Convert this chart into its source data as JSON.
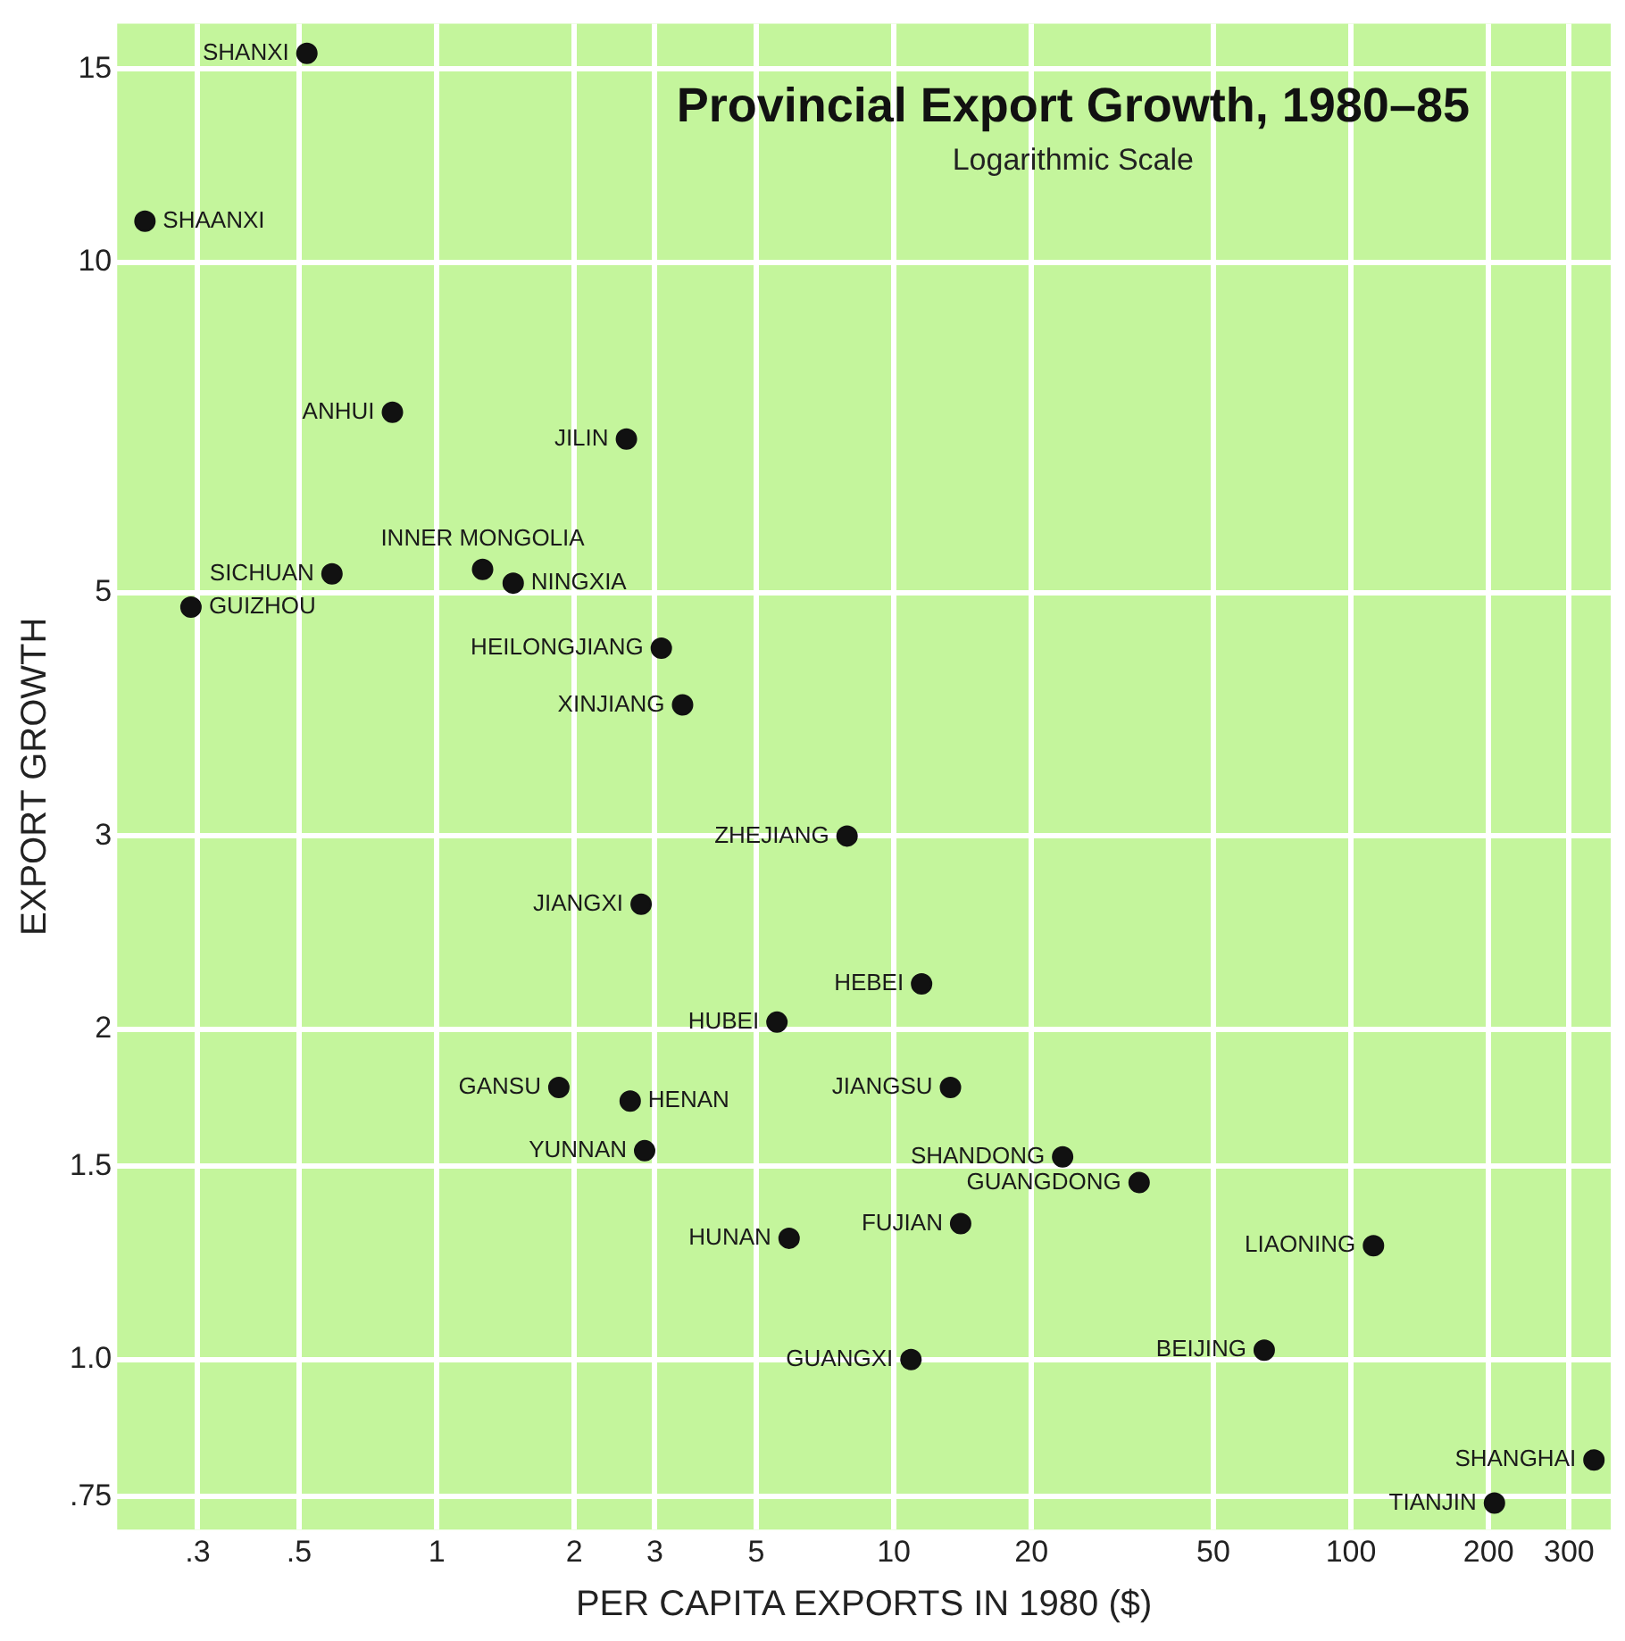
{
  "chart_data": {
    "type": "scatter",
    "title": "Provincial Export Growth, 1980–85",
    "subtitle": "Logarithmic Scale",
    "xlabel": "PER CAPITA EXPORTS IN 1980 ($)",
    "ylabel": "EXPORT GROWTH",
    "series": [
      {
        "color": "#111111",
        "x": [
          0.52,
          0.23,
          0.8,
          2.6,
          1.26,
          1.47,
          0.59,
          0.29,
          3.1,
          3.45,
          7.9,
          2.8,
          11.5,
          5.55,
          1.85,
          2.65,
          13.3,
          2.85,
          23.4,
          34.4,
          14,
          5.9,
          112,
          64.6,
          10.9,
          340,
          206
        ],
        "values": [
          15.5,
          10.9,
          7.3,
          6.9,
          5.25,
          5.1,
          5.2,
          4.85,
          4.45,
          3.95,
          3.0,
          2.6,
          2.2,
          2.03,
          1.77,
          1.72,
          1.77,
          1.55,
          1.53,
          1.45,
          1.33,
          1.29,
          1.27,
          1.02,
          1.0,
          0.81,
          0.74
        ]
      }
    ],
    "annotations": [
      {
        "text": "SHANXI",
        "x": 0.52,
        "y": 15.5
      },
      {
        "text": "SHAANXI",
        "x": 0.23,
        "y": 10.9
      },
      {
        "text": "ANHUI",
        "x": 0.8,
        "y": 7.3
      },
      {
        "text": "JILIN",
        "x": 2.6,
        "y": 6.9
      },
      {
        "text": "INNER MONGOLIA",
        "x": 1.26,
        "y": 5.25
      },
      {
        "text": "NINGXIA",
        "x": 1.47,
        "y": 5.1
      },
      {
        "text": "SICHUAN",
        "x": 0.59,
        "y": 5.2
      },
      {
        "text": "GUIZHOU",
        "x": 0.29,
        "y": 4.85
      },
      {
        "text": "HEILONGJIANG",
        "x": 3.1,
        "y": 4.45
      },
      {
        "text": "XINJIANG",
        "x": 3.45,
        "y": 3.95
      },
      {
        "text": "ZHEJIANG",
        "x": 7.9,
        "y": 3.0
      },
      {
        "text": "JIANGXI",
        "x": 2.8,
        "y": 2.6
      },
      {
        "text": "HEBEI",
        "x": 11.5,
        "y": 2.2
      },
      {
        "text": "HUBEI",
        "x": 5.55,
        "y": 2.03
      },
      {
        "text": "GANSU",
        "x": 1.85,
        "y": 1.77
      },
      {
        "text": "HENAN",
        "x": 2.65,
        "y": 1.72
      },
      {
        "text": "JIANGSU",
        "x": 13.3,
        "y": 1.77
      },
      {
        "text": "YUNNAN",
        "x": 2.85,
        "y": 1.55
      },
      {
        "text": "SHANDONG",
        "x": 23.4,
        "y": 1.53
      },
      {
        "text": "GUANGDONG",
        "x": 34.4,
        "y": 1.45
      },
      {
        "text": "FUJIAN",
        "x": 14,
        "y": 1.33
      },
      {
        "text": "HUNAN",
        "x": 5.9,
        "y": 1.29
      },
      {
        "text": "LIAONING",
        "x": 112,
        "y": 1.27
      },
      {
        "text": "BEIJING",
        "x": 64.6,
        "y": 1.02
      },
      {
        "text": "GUANGXI",
        "x": 10.9,
        "y": 1.0
      },
      {
        "text": "SHANGHAI",
        "x": 340,
        "y": 0.81
      },
      {
        "text": "TIANJIN",
        "x": 206,
        "y": 0.74
      }
    ],
    "log": "xy",
    "xlim": [
      0.2,
      370
    ],
    "ylim": [
      0.7,
      16.5
    ],
    "xticks": [
      {
        "value": 0.3,
        "label": ".3"
      },
      {
        "value": 0.5,
        "label": ".5"
      },
      1,
      2,
      3,
      5,
      10,
      20,
      50,
      100,
      200,
      300
    ],
    "yticks": [
      {
        "value": 0.75,
        "label": ".75"
      },
      {
        "value": 1,
        "label": "1.0"
      },
      1.5,
      2,
      3,
      5,
      10,
      15
    ],
    "grid": true,
    "marker": "circle",
    "legend": false
  }
}
